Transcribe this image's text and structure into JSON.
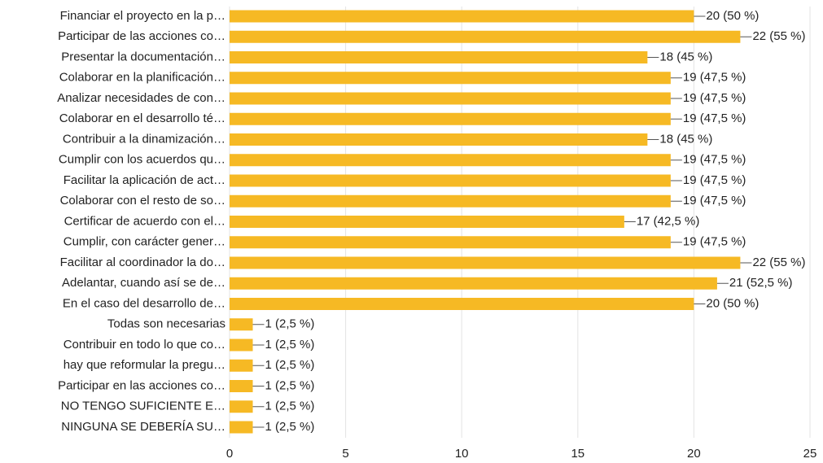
{
  "chart_data": {
    "type": "barh",
    "categories": [
      "Financiar el proyecto en la p…",
      "Participar de las acciones co…",
      "Presentar la documentación…",
      "Colaborar en la planificación…",
      "Analizar necesidades de con…",
      "Colaborar en el desarrollo té…",
      "Contribuir a la dinamización…",
      "Cumplir con los acuerdos qu…",
      "Facilitar la aplicación de act…",
      "Colaborar con el resto de so…",
      "Certificar de acuerdo con el…",
      "Cumplir, con carácter gener…",
      "Facilitar al coordinador la do…",
      "Adelantar, cuando así se de…",
      "En el caso del desarrollo de…",
      "Todas son necesarias",
      "Contribuir en todo lo que co…",
      "hay que reformular la pregu…",
      "Participar en las acciones co…",
      "NO TENGO SUFICIENTE E…",
      "NINGUNA SE DEBERÍA SU…"
    ],
    "values": [
      20,
      22,
      18,
      19,
      19,
      19,
      18,
      19,
      19,
      19,
      17,
      19,
      22,
      21,
      20,
      1,
      1,
      1,
      1,
      1,
      1
    ],
    "value_labels": [
      "20 (50 %)",
      "22 (55 %)",
      "18 (45 %)",
      "19 (47,5 %)",
      "19 (47,5 %)",
      "19 (47,5 %)",
      "18 (45 %)",
      "19 (47,5 %)",
      "19 (47,5 %)",
      "19 (47,5 %)",
      "17 (42,5 %)",
      "19 (47,5 %)",
      "22 (55 %)",
      "21 (52,5 %)",
      "20 (50 %)",
      "1 (2,5 %)",
      "1 (2,5 %)",
      "1 (2,5 %)",
      "1 (2,5 %)",
      "1 (2,5 %)",
      "1 (2,5 %)"
    ],
    "color": "#f6b924",
    "xlim": [
      0,
      25
    ],
    "xticks": [
      0,
      5,
      10,
      15,
      20,
      25
    ],
    "grid": true
  }
}
